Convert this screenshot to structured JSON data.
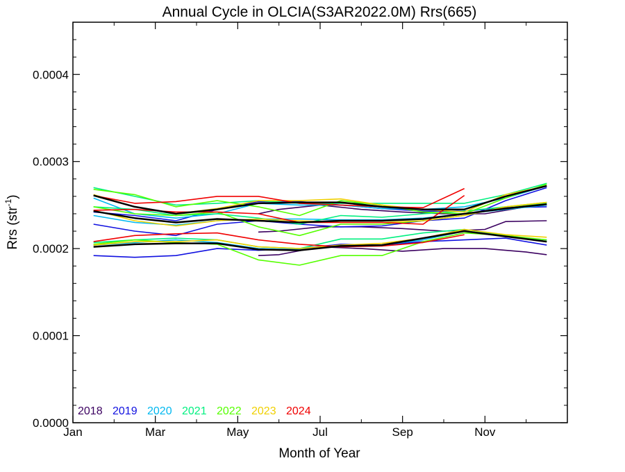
{
  "chart_data": {
    "type": "line",
    "title": "Annual Cycle in OLCIA(S3AR2022.0M) Rrs(665)",
    "xlabel": "Month of Year",
    "ylabel_main": "Rrs (str",
    "ylabel_sup": "-1",
    "ylabel_end": ")",
    "xlim": [
      0,
      12
    ],
    "ylim": [
      0,
      0.00046
    ],
    "x_ticks": [
      {
        "label": "Jan",
        "value": 0
      },
      {
        "label": "Mar",
        "value": 2
      },
      {
        "label": "May",
        "value": 4
      },
      {
        "label": "Jul",
        "value": 6
      },
      {
        "label": "Sep",
        "value": 8
      },
      {
        "label": "Nov",
        "value": 10
      }
    ],
    "y_ticks": [
      {
        "label": "0.0000",
        "value": 0
      },
      {
        "label": "0.0001",
        "value": 0.0001
      },
      {
        "label": "0.0002",
        "value": 0.0002
      },
      {
        "label": "0.0003",
        "value": 0.0003
      },
      {
        "label": "0.0004",
        "value": 0.0004
      }
    ],
    "legend": [
      {
        "label": "2018",
        "color": "#3b0060"
      },
      {
        "label": "2019",
        "color": "#1010e0"
      },
      {
        "label": "2020",
        "color": "#00b8f0"
      },
      {
        "label": "2021",
        "color": "#00f080"
      },
      {
        "label": "2022",
        "color": "#55ff00"
      },
      {
        "label": "2023",
        "color": "#f0d000"
      },
      {
        "label": "2024",
        "color": "#f00000"
      }
    ],
    "legend_placement": "bottom-left",
    "series": [
      {
        "color": "#3b0060",
        "x": [
          4.5,
          5,
          6,
          7,
          8,
          9,
          10,
          10.5,
          11.5
        ],
        "y": [
          0.000219,
          0.00022,
          0.000225,
          0.000225,
          0.000223,
          0.00022,
          0.000222,
          0.000231,
          0.000232
        ]
      },
      {
        "color": "#3b0060",
        "x": [
          4.5,
          5,
          6,
          7,
          8,
          9,
          10,
          11,
          11.5
        ],
        "y": [
          0.000192,
          0.000193,
          0.000202,
          0.0002,
          0.000197,
          0.0002,
          0.0002,
          0.000196,
          0.000193
        ]
      },
      {
        "color": "#3b0060",
        "x": [
          4.5,
          5,
          6,
          7,
          8,
          9,
          10,
          11,
          11.5
        ],
        "y": [
          0.00024,
          0.000245,
          0.00025,
          0.000245,
          0.000242,
          0.00024,
          0.00024,
          0.000248,
          0.00025
        ]
      },
      {
        "color": "#1010e0",
        "x": [
          0.5,
          1.5,
          2.5,
          3.5,
          4.5,
          5.5,
          6.5,
          7.5,
          8.5,
          9.5,
          10.5,
          11.5
        ],
        "y": [
          0.000192,
          0.00019,
          0.000192,
          0.0002,
          0.000198,
          0.0002,
          0.000205,
          0.000204,
          0.000208,
          0.00021,
          0.000212,
          0.000204
        ]
      },
      {
        "color": "#1010e0",
        "x": [
          0.5,
          1.5,
          2.5,
          3.5,
          4.5,
          5.5,
          6.5,
          7.5,
          8.5,
          9.5,
          10.5,
          11.5
        ],
        "y": [
          0.000228,
          0.00022,
          0.000215,
          0.000228,
          0.000232,
          0.000228,
          0.000225,
          0.000226,
          0.000232,
          0.000235,
          0.000255,
          0.00027
        ]
      },
      {
        "color": "#1010e0",
        "x": [
          0.5,
          1.5,
          2.5,
          3.5,
          4.5,
          5.5,
          6.5,
          7.5,
          8.5,
          9.5,
          10.5,
          11.5
        ],
        "y": [
          0.000242,
          0.000238,
          0.000232,
          0.000245,
          0.000254,
          0.000254,
          0.00025,
          0.000246,
          0.000243,
          0.000243,
          0.000247,
          0.000248
        ]
      },
      {
        "color": "#00b8f0",
        "x": [
          0.5,
          1.5,
          2.5,
          3.5,
          4.5,
          5.5,
          6.5,
          7.5,
          8.5,
          9.5,
          10.5,
          11.5
        ],
        "y": [
          0.000258,
          0.00024,
          0.000235,
          0.00024,
          0.000252,
          0.00025,
          0.00025,
          0.000246,
          0.000245,
          0.000248,
          0.000258,
          0.000272
        ]
      },
      {
        "color": "#00b8f0",
        "x": [
          0.5,
          1.5,
          2.5,
          3.5,
          4.5,
          5.5,
          6.5,
          7.5,
          8.5,
          9.5,
          10.5,
          11.5
        ],
        "y": [
          0.000238,
          0.00023,
          0.000227,
          0.000232,
          0.000234,
          0.000234,
          0.000233,
          0.000233,
          0.000235,
          0.00024,
          0.000245,
          0.00025
        ]
      },
      {
        "color": "#00b8f0",
        "x": [
          0.5,
          1.5,
          2.5,
          3.5,
          4.5,
          5.5,
          6.5,
          7.5,
          8.5,
          9.5,
          10.5,
          11.5
        ],
        "y": [
          0.000204,
          0.000207,
          0.00021,
          0.000207,
          0.0002,
          0.000199,
          0.000203,
          0.000204,
          0.00021,
          0.00022,
          0.000214,
          0.00021
        ]
      },
      {
        "color": "#00f080",
        "x": [
          0.5,
          1.5,
          2.5,
          3.5,
          4.5,
          5.5,
          6.5,
          7.5,
          8.5,
          9.5,
          10.5,
          11.5
        ],
        "y": [
          0.00027,
          0.00026,
          0.00025,
          0.000252,
          0.000255,
          0.000252,
          0.000252,
          0.000252,
          0.000252,
          0.000252,
          0.000262,
          0.000275
        ]
      },
      {
        "color": "#00f080",
        "x": [
          0.5,
          1.5,
          2.5,
          3.5,
          4.5,
          5.5,
          6.5,
          7.5,
          8.5,
          9.5,
          10.5,
          11.5
        ],
        "y": [
          0.000248,
          0.000245,
          0.000238,
          0.00024,
          0.000235,
          0.000228,
          0.000238,
          0.000236,
          0.00024,
          0.000243,
          0.000248,
          0.000252
        ]
      },
      {
        "color": "#00f080",
        "x": [
          0.5,
          1.5,
          2.5,
          3.5,
          4.5,
          5.5,
          6.5,
          7.5,
          8.5,
          9.5,
          10.5,
          11.5
        ],
        "y": [
          0.000207,
          0.00021,
          0.000212,
          0.00021,
          0.000202,
          0.0002,
          0.000211,
          0.000211,
          0.000218,
          0.000222,
          0.000215,
          0.000208
        ]
      },
      {
        "color": "#55ff00",
        "x": [
          0.5,
          1.5,
          2.5,
          3.5,
          4.5,
          5.5,
          6.5,
          7.5,
          8.5,
          9.5,
          10.5,
          11.5
        ],
        "y": [
          0.000268,
          0.000262,
          0.000248,
          0.000255,
          0.000248,
          0.000238,
          0.000255,
          0.00025,
          0.000242,
          0.00024,
          0.000258,
          0.000274
        ]
      },
      {
        "color": "#55ff00",
        "x": [
          0.5,
          1.5,
          2.5,
          3.5,
          4.5,
          5.5,
          6.5,
          7.5,
          8.5,
          9.5,
          10.5,
          11.5
        ],
        "y": [
          0.000248,
          0.00024,
          0.000238,
          0.000242,
          0.000225,
          0.000215,
          0.000228,
          0.000228,
          0.000232,
          0.000238,
          0.000248,
          0.000253
        ]
      },
      {
        "color": "#55ff00",
        "x": [
          0.5,
          1.5,
          2.5,
          3.5,
          4.5,
          5.5,
          6.5,
          7.5,
          8.5,
          9.5,
          10.5,
          11.5
        ],
        "y": [
          0.000205,
          0.00021,
          0.000207,
          0.000205,
          0.000187,
          0.000181,
          0.000192,
          0.000192,
          0.000208,
          0.000218,
          0.000215,
          0.00021
        ]
      },
      {
        "color": "#f0d000",
        "x": [
          0.5,
          1.5,
          2.5,
          3.5,
          4.5,
          5.5,
          6.5,
          7.5,
          8.5,
          9.5,
          10.5,
          11.5
        ],
        "y": [
          0.000262,
          0.000248,
          0.00024,
          0.000246,
          0.000255,
          0.000255,
          0.000257,
          0.00025,
          0.000245,
          0.000242,
          0.000262,
          0.000272
        ]
      },
      {
        "color": "#f0d000",
        "x": [
          0.5,
          1.5,
          2.5,
          3.5,
          4.5,
          5.5,
          6.5,
          7.5,
          8.5,
          9.5,
          10.5,
          11.5
        ],
        "y": [
          0.000244,
          0.000232,
          0.000226,
          0.000232,
          0.000234,
          0.000232,
          0.00023,
          0.00023,
          0.000232,
          0.000238,
          0.000248,
          0.000253
        ]
      },
      {
        "color": "#f0d000",
        "x": [
          0.5,
          1.5,
          2.5,
          3.5,
          4.5,
          5.5,
          6.5,
          7.5,
          8.5,
          9.5,
          10.5,
          11.5
        ],
        "y": [
          0.000204,
          0.000208,
          0.000208,
          0.00021,
          0.000202,
          0.0002,
          0.000204,
          0.000206,
          0.000212,
          0.000222,
          0.000216,
          0.000213
        ]
      },
      {
        "color": "#f00000",
        "x": [
          0.5,
          1.5,
          2.5,
          3.5,
          4.5,
          5.5,
          6.5,
          7.5,
          8.5,
          9.5
        ],
        "y": [
          0.000261,
          0.000252,
          0.000254,
          0.00026,
          0.00026,
          0.000252,
          0.00025,
          0.000248,
          0.000247,
          0.000269
        ]
      },
      {
        "color": "#f00000",
        "x": [
          0.5,
          1.5,
          2.5,
          3.5,
          4.5,
          5.5,
          6.5,
          7.5,
          8.5,
          9.5
        ],
        "y": [
          0.000244,
          0.000245,
          0.000242,
          0.000242,
          0.00024,
          0.00023,
          0.00023,
          0.00023,
          0.000228,
          0.000261
        ]
      },
      {
        "color": "#f00000",
        "x": [
          0.5,
          1.5,
          2.5,
          3.5,
          4.5,
          5.5,
          6.5,
          7.5,
          8.5,
          9.5
        ],
        "y": [
          0.000208,
          0.000215,
          0.000217,
          0.000218,
          0.00021,
          0.000205,
          0.000202,
          0.000203,
          0.000207,
          0.000216
        ]
      },
      {
        "color": "#000000",
        "width": 2.5,
        "x": [
          0.5,
          1.5,
          2.5,
          3.5,
          4.5,
          5.5,
          6.5,
          7.5,
          8.5,
          9.5,
          10.5,
          11.5
        ],
        "y": [
          0.000261,
          0.000248,
          0.00024,
          0.000245,
          0.000252,
          0.000253,
          0.000253,
          0.000248,
          0.000245,
          0.000245,
          0.00026,
          0.000272
        ]
      },
      {
        "color": "#000000",
        "width": 2.5,
        "x": [
          0.5,
          1.5,
          2.5,
          3.5,
          4.5,
          5.5,
          6.5,
          7.5,
          8.5,
          9.5,
          10.5,
          11.5
        ],
        "y": [
          0.000243,
          0.000235,
          0.00023,
          0.000234,
          0.000232,
          0.00023,
          0.000232,
          0.000232,
          0.000234,
          0.00024,
          0.000246,
          0.000251
        ]
      },
      {
        "color": "#000000",
        "width": 2.5,
        "x": [
          0.5,
          1.5,
          2.5,
          3.5,
          4.5,
          5.5,
          6.5,
          7.5,
          8.5,
          9.5,
          10.5,
          11.5
        ],
        "y": [
          0.000202,
          0.000205,
          0.000206,
          0.000206,
          0.000199,
          0.000198,
          0.000203,
          0.000204,
          0.000212,
          0.00022,
          0.000214,
          0.000208
        ]
      }
    ]
  }
}
